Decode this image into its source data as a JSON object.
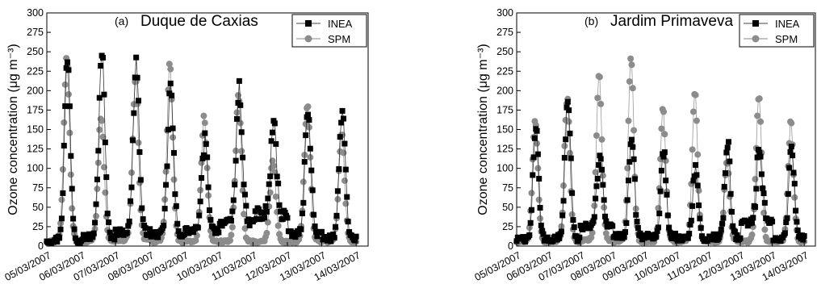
{
  "colors": {
    "inea": "#000000",
    "spm": "#8c8c8c",
    "line": "#444444"
  },
  "chart_data": [
    {
      "type": "line",
      "panel_label": "(a)",
      "title": "Duque de Caxias",
      "ylabel": "Ozone concentration (μg m⁻³)",
      "ylim": [
        0,
        300
      ],
      "yticks": [
        0,
        25,
        50,
        75,
        100,
        125,
        150,
        175,
        200,
        225,
        250,
        275,
        300
      ],
      "x_ticklabels": [
        "05/03/2007",
        "06/03/2007",
        "07/03/2007",
        "08/03/2007",
        "09/03/2007",
        "10/03/2007",
        "11/03/2007",
        "12/03/2007",
        "13/03/2007",
        "14/03/2007"
      ],
      "legend_position": "top-right",
      "series": [
        {
          "name": "INEA",
          "marker": "square",
          "peaks": [
            {
              "day": 0.6,
              "value": 240
            },
            {
              "day": 1.6,
              "value": 252
            },
            {
              "day": 2.6,
              "value": 239
            },
            {
              "day": 3.6,
              "value": 205
            },
            {
              "day": 4.6,
              "value": 136
            },
            {
              "day": 5.6,
              "value": 203
            },
            {
              "day": 6.6,
              "value": 158
            },
            {
              "day": 7.6,
              "value": 180
            },
            {
              "day": 8.6,
              "value": 182
            }
          ],
          "baseline": [
            8,
            12,
            18,
            15,
            20,
            30,
            40,
            15,
            10
          ]
        },
        {
          "name": "SPM",
          "marker": "circle",
          "peaks": [
            {
              "day": 0.58,
              "value": 240
            },
            {
              "day": 1.58,
              "value": 170
            },
            {
              "day": 2.58,
              "value": 215
            },
            {
              "day": 3.58,
              "value": 233
            },
            {
              "day": 4.58,
              "value": 165
            },
            {
              "day": 5.58,
              "value": 195
            },
            {
              "day": 6.58,
              "value": 110
            },
            {
              "day": 7.58,
              "value": 183
            },
            {
              "day": 8.58,
              "value": 143
            }
          ],
          "baseline": [
            6,
            6,
            8,
            6,
            6,
            6,
            6,
            6,
            6
          ]
        }
      ]
    },
    {
      "type": "line",
      "panel_label": "(b)",
      "title": "Jardim Primaveva",
      "ylabel": "Ozone concentration (μg m⁻³)",
      "ylim": [
        0,
        300
      ],
      "yticks": [
        0,
        25,
        50,
        75,
        100,
        125,
        150,
        175,
        200,
        225,
        250,
        275,
        300
      ],
      "x_ticklabels": [
        "05/03/2007",
        "06/03/2007",
        "07/03/2007",
        "08/03/2007",
        "09/03/2007",
        "10/03/2007",
        "11/03/2007",
        "12/03/2007",
        "13/03/2007",
        "14/03/2007"
      ],
      "legend_position": "top-right",
      "series": [
        {
          "name": "INEA",
          "marker": "square",
          "peaks": [
            {
              "day": 0.6,
              "value": 155
            },
            {
              "day": 1.6,
              "value": 195
            },
            {
              "day": 2.6,
              "value": 118
            },
            {
              "day": 3.6,
              "value": 140
            },
            {
              "day": 4.6,
              "value": 120
            },
            {
              "day": 5.6,
              "value": 102
            },
            {
              "day": 6.6,
              "value": 132
            },
            {
              "day": 7.6,
              "value": 130
            },
            {
              "day": 8.6,
              "value": 135
            }
          ],
          "baseline": [
            8,
            10,
            25,
            12,
            12,
            10,
            12,
            30,
            10
          ]
        },
        {
          "name": "SPM",
          "marker": "circle",
          "peaks": [
            {
              "day": 0.58,
              "value": 163
            },
            {
              "day": 1.58,
              "value": 190
            },
            {
              "day": 2.58,
              "value": 223
            },
            {
              "day": 3.58,
              "value": 242
            },
            {
              "day": 4.58,
              "value": 176
            },
            {
              "day": 5.58,
              "value": 196
            },
            {
              "day": 6.58,
              "value": 107
            },
            {
              "day": 7.58,
              "value": 193
            },
            {
              "day": 8.58,
              "value": 158
            }
          ],
          "baseline": [
            6,
            6,
            8,
            6,
            6,
            6,
            6,
            6,
            6
          ]
        }
      ]
    }
  ]
}
